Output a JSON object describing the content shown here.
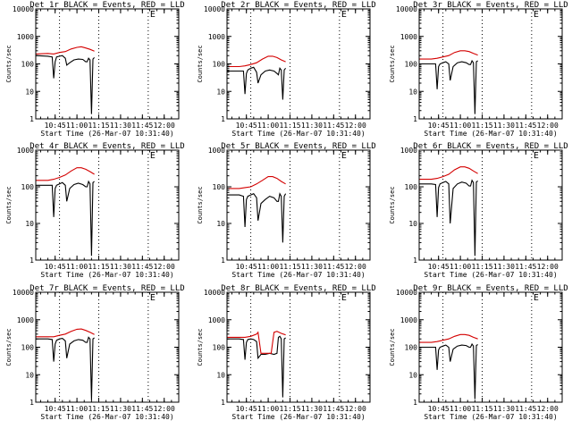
{
  "figure": {
    "background": "#ffffff",
    "axis_color": "#000000",
    "events_color": "#000000",
    "lld_color": "#d40000",
    "line_style_markers": "dotted"
  },
  "chart_data": [
    {
      "type": "line",
      "title": "Det 1r  BLACK = Events, RED = LLD",
      "corner_mark": "E",
      "xlabel": "Start Time (26-Mar-07 10:31:40)",
      "ylabel": "Counts/sec",
      "yscale": "log",
      "ylim": [
        1,
        10000
      ],
      "y_ticks": [
        "1",
        "10",
        "100",
        "1000",
        "10000"
      ],
      "x_ticks": [
        "10:45",
        "11:00",
        "11:15",
        "11:30",
        "11:45",
        "12:00"
      ],
      "xlim": [
        "10:31:40",
        "12:10"
      ],
      "vertical_markers": [
        "10:48",
        "11:15",
        "11:49"
      ],
      "series": [
        {
          "color": "#000000",
          "x": [
            "10:31:40",
            "10:40",
            "10:43",
            "10:44",
            "10:45",
            "10:46",
            "10:48",
            "10:50",
            "10:52",
            "10:53",
            "10:55",
            "10:58",
            "11:01",
            "11:04",
            "11:06",
            "11:07",
            "11:08",
            "11:09",
            "11:10",
            "11:11",
            "11:12"
          ],
          "y": [
            200,
            190,
            180,
            30,
            120,
            180,
            190,
            200,
            160,
            90,
            110,
            140,
            150,
            145,
            120,
            120,
            160,
            140,
            1.5,
            150,
            170
          ]
        },
        {
          "color": "#d40000",
          "x": [
            "10:31:40",
            "10:40",
            "10:44",
            "10:48",
            "10:52",
            "10:56",
            "11:00",
            "11:03",
            "11:06",
            "11:09",
            "11:12"
          ],
          "y": [
            230,
            240,
            230,
            260,
            280,
            350,
            400,
            420,
            380,
            340,
            290
          ]
        }
      ]
    },
    {
      "type": "line",
      "title": "Det 2r  BLACK = Events, RED = LLD",
      "corner_mark": "E",
      "xlabel": "Start Time (26-Mar-07 10:31:40)",
      "ylabel": "Counts/sec",
      "yscale": "log",
      "ylim": [
        1,
        10000
      ],
      "y_ticks": [
        "1",
        "10",
        "100",
        "1000",
        "10000"
      ],
      "x_ticks": [
        "10:45",
        "11:00",
        "11:15",
        "11:30",
        "11:45",
        "12:00"
      ],
      "xlim": [
        "10:31:40",
        "12:10"
      ],
      "vertical_markers": [
        "10:48",
        "11:15",
        "11:49"
      ],
      "series": [
        {
          "color": "#000000",
          "x": [
            "10:31:40",
            "10:40",
            "10:43",
            "10:44",
            "10:45",
            "10:46",
            "10:48",
            "10:50",
            "10:52",
            "10:53",
            "10:55",
            "10:58",
            "11:01",
            "11:04",
            "11:06",
            "11:07",
            "11:08",
            "11:09",
            "11:10",
            "11:11",
            "11:12"
          ],
          "y": [
            55,
            55,
            55,
            8,
            45,
            60,
            70,
            75,
            50,
            20,
            40,
            55,
            60,
            55,
            45,
            40,
            70,
            60,
            5,
            60,
            70
          ]
        },
        {
          "color": "#d40000",
          "x": [
            "10:31:40",
            "10:40",
            "10:44",
            "10:48",
            "10:52",
            "10:56",
            "11:00",
            "11:03",
            "11:06",
            "11:09",
            "11:12"
          ],
          "y": [
            80,
            80,
            85,
            95,
            110,
            150,
            190,
            190,
            170,
            140,
            120
          ]
        }
      ]
    },
    {
      "type": "line",
      "title": "Det 3r  BLACK = Events, RED = LLD",
      "corner_mark": "E",
      "xlabel": "Start Time (26-Mar-07 10:31:40)",
      "ylabel": "Counts/sec",
      "yscale": "log",
      "ylim": [
        1,
        10000
      ],
      "y_ticks": [
        "1",
        "10",
        "100",
        "1000",
        "10000"
      ],
      "x_ticks": [
        "10:45",
        "11:00",
        "11:15",
        "11:30",
        "11:45",
        "12:00"
      ],
      "xlim": [
        "10:31:40",
        "12:10"
      ],
      "vertical_markers": [
        "10:48",
        "11:15",
        "11:49"
      ],
      "series": [
        {
          "color": "#000000",
          "x": [
            "10:31:40",
            "10:40",
            "10:43",
            "10:44",
            "10:45",
            "10:46",
            "10:48",
            "10:50",
            "10:52",
            "10:53",
            "10:55",
            "10:58",
            "11:01",
            "11:04",
            "11:06",
            "11:07",
            "11:08",
            "11:09",
            "11:10",
            "11:11",
            "11:12"
          ],
          "y": [
            100,
            100,
            100,
            12,
            80,
            100,
            110,
            120,
            100,
            25,
            80,
            110,
            120,
            110,
            95,
            95,
            130,
            110,
            1.5,
            120,
            130
          ]
        },
        {
          "color": "#d40000",
          "x": [
            "10:31:40",
            "10:40",
            "10:44",
            "10:48",
            "10:52",
            "10:56",
            "11:00",
            "11:03",
            "11:06",
            "11:09",
            "11:12"
          ],
          "y": [
            150,
            150,
            160,
            180,
            200,
            260,
            300,
            300,
            280,
            240,
            210
          ]
        }
      ]
    },
    {
      "type": "line",
      "title": "Det 4r  BLACK = Events, RED = LLD",
      "corner_mark": "E",
      "xlabel": "Start Time (26-Mar-07 10:31:40)",
      "ylabel": "Counts/sec",
      "yscale": "log",
      "ylim": [
        1,
        1000
      ],
      "y_ticks": [
        "1",
        "10",
        "100",
        "1000"
      ],
      "x_ticks": [
        "10:45",
        "11:00",
        "11:15",
        "11:30",
        "11:45",
        "12:00"
      ],
      "xlim": [
        "10:31:40",
        "12:10"
      ],
      "vertical_markers": [
        "10:48",
        "11:15",
        "11:49"
      ],
      "series": [
        {
          "color": "#000000",
          "x": [
            "10:31:40",
            "10:40",
            "10:43",
            "10:44",
            "10:45",
            "10:46",
            "10:48",
            "10:50",
            "10:52",
            "10:53",
            "10:55",
            "10:58",
            "11:01",
            "11:04",
            "11:06",
            "11:07",
            "11:08",
            "11:09",
            "11:10",
            "11:11",
            "11:12"
          ],
          "y": [
            110,
            110,
            110,
            15,
            90,
            110,
            120,
            130,
            110,
            40,
            90,
            115,
            125,
            115,
            100,
            100,
            140,
            120,
            1.3,
            130,
            140
          ]
        },
        {
          "color": "#d40000",
          "x": [
            "10:31:40",
            "10:40",
            "10:44",
            "10:48",
            "10:52",
            "10:56",
            "11:00",
            "11:03",
            "11:06",
            "11:09",
            "11:12"
          ],
          "y": [
            150,
            150,
            160,
            180,
            210,
            270,
            330,
            330,
            300,
            260,
            220
          ]
        }
      ]
    },
    {
      "type": "line",
      "title": "Det 5r  BLACK = Events, RED = LLD",
      "corner_mark": "E",
      "xlabel": "Start Time (26-Mar-07 10:31:40)",
      "ylabel": "Counts/sec",
      "yscale": "log",
      "ylim": [
        1,
        1000
      ],
      "y_ticks": [
        "1",
        "10",
        "100",
        "1000"
      ],
      "x_ticks": [
        "10:45",
        "11:00",
        "11:15",
        "11:30",
        "11:45",
        "12:00"
      ],
      "xlim": [
        "10:31:40",
        "12:10"
      ],
      "vertical_markers": [
        "10:48",
        "11:15",
        "11:49"
      ],
      "series": [
        {
          "color": "#000000",
          "x": [
            "10:31:40",
            "10:40",
            "10:43",
            "10:44",
            "10:45",
            "10:46",
            "10:48",
            "10:50",
            "10:52",
            "10:53",
            "10:55",
            "10:58",
            "11:01",
            "11:04",
            "11:06",
            "11:07",
            "11:08",
            "11:09",
            "11:10",
            "11:11",
            "11:12"
          ],
          "y": [
            60,
            60,
            55,
            8,
            45,
            55,
            60,
            65,
            50,
            12,
            35,
            45,
            55,
            50,
            40,
            40,
            65,
            55,
            3,
            55,
            65
          ]
        },
        {
          "color": "#d40000",
          "x": [
            "10:31:40",
            "10:40",
            "10:44",
            "10:48",
            "10:52",
            "10:56",
            "11:00",
            "11:03",
            "11:06",
            "11:09",
            "11:12"
          ],
          "y": [
            90,
            90,
            95,
            100,
            120,
            150,
            190,
            190,
            170,
            140,
            120
          ]
        }
      ]
    },
    {
      "type": "line",
      "title": "Det 6r  BLACK = Events, RED = LLD",
      "corner_mark": "E",
      "xlabel": "Start Time (26-Mar-07 10:31:40)",
      "ylabel": "Counts/sec",
      "yscale": "log",
      "ylim": [
        1,
        1000
      ],
      "y_ticks": [
        "1",
        "10",
        "100",
        "1000"
      ],
      "x_ticks": [
        "10:45",
        "11:00",
        "11:15",
        "11:30",
        "11:45",
        "12:00"
      ],
      "xlim": [
        "10:31:40",
        "12:10"
      ],
      "vertical_markers": [
        "10:48",
        "11:15",
        "11:49"
      ],
      "series": [
        {
          "color": "#000000",
          "x": [
            "10:31:40",
            "10:40",
            "10:43",
            "10:44",
            "10:45",
            "10:46",
            "10:48",
            "10:50",
            "10:52",
            "10:53",
            "10:55",
            "10:58",
            "11:01",
            "11:04",
            "11:06",
            "11:07",
            "11:08",
            "11:09",
            "11:10",
            "11:11",
            "11:12"
          ],
          "y": [
            120,
            120,
            115,
            15,
            95,
            120,
            130,
            140,
            120,
            10,
            90,
            120,
            135,
            125,
            105,
            105,
            150,
            130,
            1.3,
            135,
            145
          ]
        },
        {
          "color": "#d40000",
          "x": [
            "10:31:40",
            "10:40",
            "10:44",
            "10:48",
            "10:52",
            "10:56",
            "11:00",
            "11:03",
            "11:06",
            "11:09",
            "11:12"
          ],
          "y": [
            160,
            160,
            170,
            190,
            220,
            290,
            350,
            350,
            320,
            270,
            230
          ]
        }
      ]
    },
    {
      "type": "line",
      "title": "Det 7r  BLACK = Events, RED = LLD",
      "corner_mark": "E",
      "xlabel": "Start Time (26-Mar-07 10:31:40)",
      "ylabel": "Counts/sec",
      "yscale": "log",
      "ylim": [
        1,
        10000
      ],
      "y_ticks": [
        "1",
        "10",
        "100",
        "1000",
        "10000"
      ],
      "x_ticks": [
        "10:45",
        "11:00",
        "11:15",
        "11:30",
        "11:45",
        "12:00"
      ],
      "xlim": [
        "10:31:40",
        "12:10"
      ],
      "vertical_markers": [
        "10:48",
        "11:15",
        "11:49"
      ],
      "series": [
        {
          "color": "#000000",
          "x": [
            "10:31:40",
            "10:40",
            "10:43",
            "10:44",
            "10:45",
            "10:46",
            "10:48",
            "10:50",
            "10:52",
            "10:53",
            "10:55",
            "10:58",
            "11:01",
            "11:04",
            "11:06",
            "11:07",
            "11:08",
            "11:09",
            "11:10",
            "11:11",
            "11:12"
          ],
          "y": [
            200,
            200,
            190,
            30,
            130,
            180,
            200,
            210,
            170,
            40,
            130,
            170,
            190,
            180,
            150,
            150,
            230,
            200,
            1.2,
            200,
            220
          ]
        },
        {
          "color": "#d40000",
          "x": [
            "10:31:40",
            "10:40",
            "10:44",
            "10:48",
            "10:52",
            "10:56",
            "11:00",
            "11:03",
            "11:06",
            "11:09",
            "11:12"
          ],
          "y": [
            240,
            240,
            240,
            270,
            300,
            380,
            450,
            460,
            410,
            350,
            290
          ]
        }
      ]
    },
    {
      "type": "line",
      "title": "Det 8r  BLACK = Events, RED = LLD",
      "corner_mark": "E",
      "xlabel": "Start Time (26-Mar-07 10:31:40)",
      "ylabel": "Counts/sec",
      "yscale": "log",
      "ylim": [
        1,
        10000
      ],
      "y_ticks": [
        "1",
        "10",
        "100",
        "1000",
        "10000"
      ],
      "x_ticks": [
        "10:45",
        "11:00",
        "11:15",
        "11:30",
        "11:45",
        "12:00"
      ],
      "xlim": [
        "10:31:40",
        "12:10"
      ],
      "vertical_markers": [
        "10:48",
        "11:15",
        "11:49"
      ],
      "series": [
        {
          "color": "#000000",
          "x": [
            "10:31:40",
            "10:40",
            "10:43",
            "10:44",
            "10:45",
            "10:46",
            "10:48",
            "10:50",
            "10:52",
            "10:53",
            "10:55",
            "10:58",
            "11:01",
            "11:04",
            "11:06",
            "11:07",
            "11:08",
            "11:09",
            "11:10",
            "11:11",
            "11:12"
          ],
          "y": [
            200,
            200,
            190,
            35,
            150,
            190,
            200,
            190,
            160,
            40,
            55,
            55,
            60,
            55,
            60,
            230,
            250,
            200,
            1.5,
            200,
            220
          ]
        },
        {
          "color": "#d40000",
          "x": [
            "10:31:40",
            "10:40",
            "10:44",
            "10:48",
            "10:52",
            "10:53",
            "10:55",
            "10:58",
            "11:01",
            "11:02",
            "11:04",
            "11:06",
            "11:09",
            "11:12"
          ],
          "y": [
            230,
            230,
            230,
            250,
            300,
            350,
            60,
            60,
            60,
            60,
            350,
            380,
            320,
            280
          ]
        }
      ]
    },
    {
      "type": "line",
      "title": "Det 9r  BLACK = Events, RED = LLD",
      "corner_mark": "E",
      "xlabel": "Start Time (26-Mar-07 10:31:40)",
      "ylabel": "Counts/sec",
      "yscale": "log",
      "ylim": [
        1,
        10000
      ],
      "y_ticks": [
        "1",
        "10",
        "100",
        "1000",
        "10000"
      ],
      "x_ticks": [
        "10:45",
        "11:00",
        "11:15",
        "11:30",
        "11:45",
        "12:00"
      ],
      "xlim": [
        "10:31:40",
        "12:10"
      ],
      "vertical_markers": [
        "10:48",
        "11:15",
        "11:49"
      ],
      "series": [
        {
          "color": "#000000",
          "x": [
            "10:31:40",
            "10:40",
            "10:43",
            "10:44",
            "10:45",
            "10:46",
            "10:48",
            "10:50",
            "10:52",
            "10:53",
            "10:55",
            "10:58",
            "11:01",
            "11:04",
            "11:06",
            "11:07",
            "11:08",
            "11:09",
            "11:10",
            "11:11",
            "11:12"
          ],
          "y": [
            100,
            100,
            100,
            15,
            80,
            100,
            110,
            120,
            100,
            30,
            85,
            110,
            120,
            115,
            100,
            100,
            130,
            110,
            1.3,
            115,
            125
          ]
        },
        {
          "color": "#d40000",
          "x": [
            "10:31:40",
            "10:40",
            "10:44",
            "10:48",
            "10:52",
            "10:56",
            "11:00",
            "11:03",
            "11:06",
            "11:09",
            "11:12"
          ],
          "y": [
            150,
            150,
            160,
            180,
            200,
            250,
            290,
            290,
            270,
            230,
            200
          ]
        }
      ]
    }
  ]
}
